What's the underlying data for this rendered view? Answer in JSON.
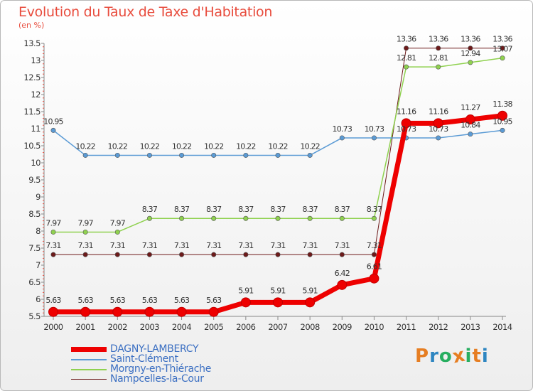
{
  "header": {
    "title": "Evolution du Taux de Taxe d'Habitation",
    "unit": "(en %)"
  },
  "brand": {
    "name": "Proxiti",
    "letters": [
      "P",
      "r",
      "o",
      "x",
      "i",
      "t",
      "i"
    ],
    "colors": [
      "#e67e22",
      "#2e86c1",
      "#27ae60",
      "#e67e22",
      "#27ae60",
      "#e67e22",
      "#2e86c1"
    ]
  },
  "colors": {
    "title": "#e84c3d",
    "legend_text": "#3b6fc2",
    "axis": "#888888",
    "frame": "#b8b8b8",
    "background_top": "#ffffff",
    "background_bottom": "#f0f0f0"
  },
  "chart_data": {
    "type": "line",
    "title": "Evolution du Taux de Taxe d'Habitation",
    "ylabel": "(en %)",
    "xlabel": "",
    "ylim": [
      5.5,
      13.5
    ],
    "y_ticks": [
      5.5,
      6,
      6.5,
      7,
      7.5,
      8,
      8.5,
      9,
      9.5,
      10,
      10.5,
      11,
      11.5,
      12,
      12.5,
      13,
      13.5
    ],
    "categories": [
      "2000",
      "2001",
      "2002",
      "2003",
      "2004",
      "2005",
      "2006",
      "2007",
      "2008",
      "2009",
      "2010",
      "2011",
      "2012",
      "2013",
      "2014"
    ],
    "series": [
      {
        "name": "Nampcelles-la-Cour",
        "color": "#6d1a1a",
        "line_width": 1,
        "values": [
          7.31,
          7.31,
          7.31,
          7.31,
          7.31,
          7.31,
          7.31,
          7.31,
          7.31,
          7.31,
          7.31,
          13.36,
          13.36,
          13.36,
          13.36
        ],
        "labels": [
          "7.31",
          "7.31",
          "7.31",
          "7.31",
          "7.31",
          "7.31",
          "7.31",
          "7.31",
          "7.31",
          "7.31",
          "7.31",
          "13.36",
          "13.36",
          "13.36",
          "13.36"
        ]
      },
      {
        "name": "Morgny-en-Thiérache",
        "color": "#8fd14f",
        "line_width": 1.5,
        "values": [
          7.97,
          7.97,
          7.97,
          8.37,
          8.37,
          8.37,
          8.37,
          8.37,
          8.37,
          8.37,
          8.37,
          12.81,
          12.81,
          12.94,
          13.07
        ],
        "labels": [
          "7.97",
          "7.97",
          "7.97",
          "8.37",
          "8.37",
          "8.37",
          "8.37",
          "8.37",
          "8.37",
          "8.37",
          "8.37",
          "12.81",
          "12.81",
          "12.94",
          "13.07"
        ]
      },
      {
        "name": "Saint-Clément",
        "color": "#5b9bd5",
        "line_width": 1.5,
        "values": [
          10.95,
          10.22,
          10.22,
          10.22,
          10.22,
          10.22,
          10.22,
          10.22,
          10.22,
          10.73,
          10.73,
          10.73,
          10.73,
          10.84,
          10.95
        ],
        "labels": [
          "10.95",
          "10.22",
          "10.22",
          "10.22",
          "10.22",
          "10.22",
          "10.22",
          "10.22",
          "10.22",
          "10.73",
          "10.73",
          "10.73",
          "10.73",
          "10.84",
          "10.95"
        ]
      },
      {
        "name": "DAGNY-LAMBERCY",
        "color": "#ee0000",
        "line_width": 7,
        "values": [
          5.63,
          5.63,
          5.63,
          5.63,
          5.63,
          5.63,
          5.91,
          5.91,
          5.91,
          6.42,
          6.61,
          11.16,
          11.16,
          11.27,
          11.38
        ],
        "labels": [
          "5.63",
          "5.63",
          "5.63",
          "5.63",
          "5.63",
          "5.63",
          "5.91",
          "5.91",
          "5.91",
          "6.42",
          "6.61",
          "11.16",
          "11.16",
          "11.27",
          "11.38"
        ]
      }
    ],
    "legend": [
      "DAGNY-LAMBERCY",
      "Saint-Clément",
      "Morgny-en-Thiérache",
      "Nampcelles-la-Cour"
    ],
    "legend_position": "bottom-left",
    "grid": false
  }
}
